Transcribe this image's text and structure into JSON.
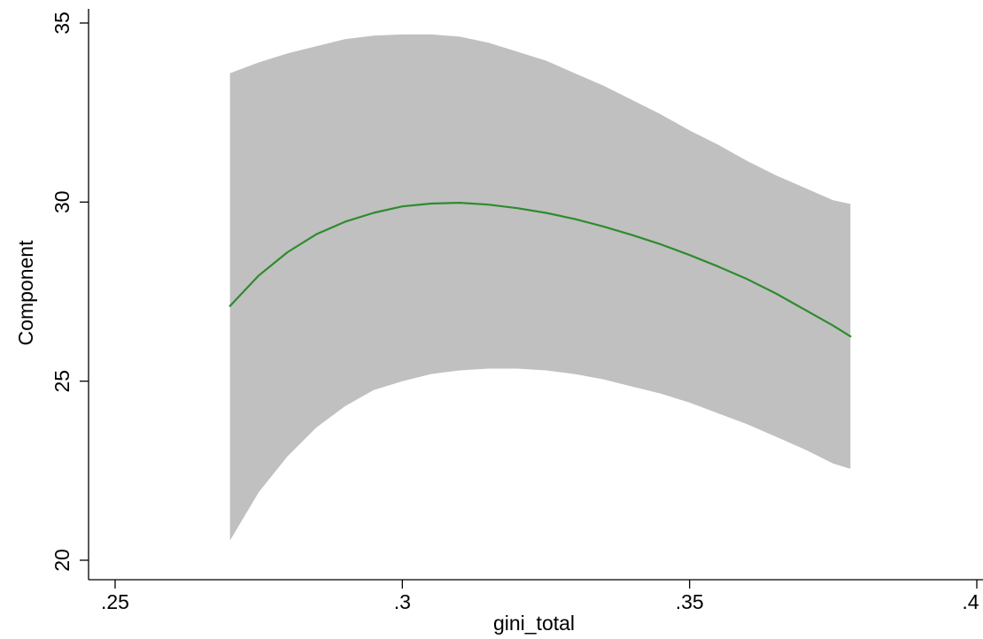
{
  "chart_data": {
    "type": "line",
    "title": "",
    "xlabel": "gini_total",
    "ylabel": "Component",
    "xlim": [
      0.25,
      0.4
    ],
    "ylim": [
      20,
      35
    ],
    "x_ticks": [
      0.25,
      0.3,
      0.35,
      0.4
    ],
    "x_tick_labels": [
      ".25",
      ".3",
      ".35",
      ".4"
    ],
    "y_ticks": [
      20,
      25,
      30,
      35
    ],
    "y_tick_labels": [
      "20",
      "25",
      "30",
      "35"
    ],
    "grid": false,
    "legend": "none",
    "colors": {
      "line": "#2e8b2e",
      "band": "#c0c0c0",
      "axis": "#000000"
    },
    "x": [
      0.27,
      0.275,
      0.28,
      0.285,
      0.29,
      0.295,
      0.3,
      0.305,
      0.31,
      0.315,
      0.32,
      0.325,
      0.33,
      0.335,
      0.34,
      0.345,
      0.35,
      0.355,
      0.36,
      0.365,
      0.37,
      0.375,
      0.378
    ],
    "series": [
      {
        "type": "line",
        "values": [
          27.1,
          27.95,
          28.6,
          29.1,
          29.45,
          29.7,
          29.88,
          29.96,
          29.98,
          29.93,
          29.83,
          29.7,
          29.53,
          29.32,
          29.08,
          28.82,
          28.52,
          28.2,
          27.85,
          27.45,
          27.0,
          26.55,
          26.25
        ]
      },
      {
        "type": "band",
        "upper": [
          33.6,
          33.9,
          34.15,
          34.35,
          34.55,
          34.65,
          34.68,
          34.68,
          34.62,
          34.45,
          34.2,
          33.95,
          33.6,
          33.25,
          32.85,
          32.45,
          32.0,
          31.6,
          31.15,
          30.75,
          30.4,
          30.05,
          29.95
        ],
        "lower": [
          20.55,
          21.9,
          22.9,
          23.7,
          24.3,
          24.75,
          25.0,
          25.2,
          25.3,
          25.35,
          25.35,
          25.3,
          25.2,
          25.05,
          24.85,
          24.65,
          24.4,
          24.1,
          23.8,
          23.45,
          23.1,
          22.7,
          22.55
        ]
      }
    ]
  }
}
